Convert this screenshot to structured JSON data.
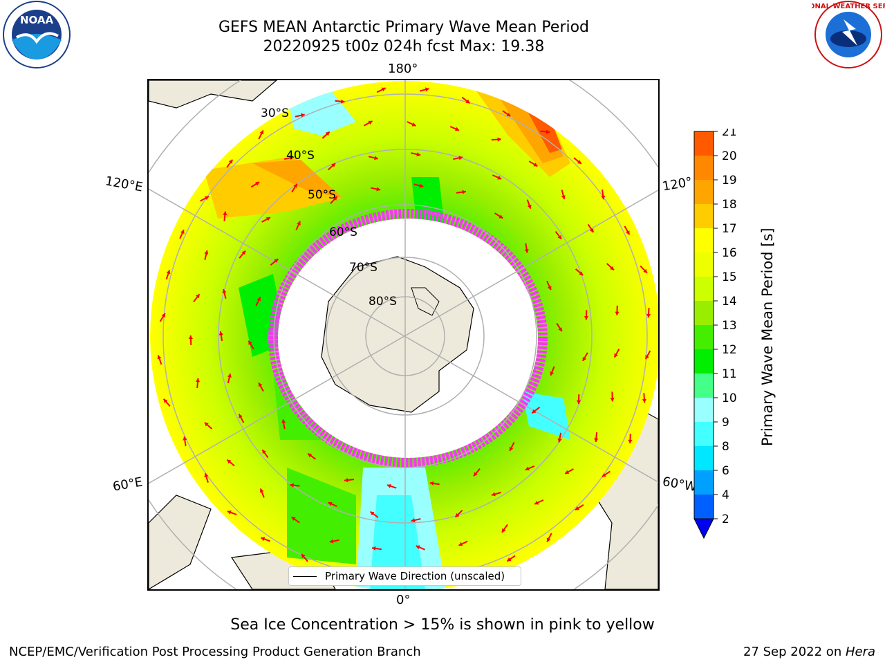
{
  "title": {
    "line1": "GEFS MEAN Antarctic Primary Wave Mean Period",
    "line2": "20220925 t00z 024h fcst   Max: 19.38"
  },
  "map": {
    "projection": "south-polar-stereographic",
    "longitude_labels": {
      "top": "180°",
      "upper_left": "120°E",
      "upper_right": "120°",
      "lower_left": "60°E",
      "lower_right": "60°W",
      "bottom": "0°"
    },
    "latitude_labels": [
      "30°S",
      "40°S",
      "50°S",
      "60°S",
      "70°S",
      "80°S"
    ],
    "land_color": "#eeeadb",
    "sea_ice_color": "#ff33ff",
    "arrow_color": "#ff0000",
    "grid_color": "#b0b0b0"
  },
  "colorbar": {
    "label": "Primary Wave Mean Period [s]",
    "ticks": [
      "2",
      "4",
      "6",
      "8",
      "9",
      "10",
      "11",
      "12",
      "13",
      "14",
      "15",
      "16",
      "17",
      "18",
      "19",
      "20",
      "21"
    ],
    "colors": [
      "#0060ff",
      "#00a0ff",
      "#00e8ff",
      "#44ffff",
      "#99ffff",
      "#44ff88",
      "#00ee00",
      "#44ee00",
      "#99ee00",
      "#ccff00",
      "#eeff00",
      "#ffff00",
      "#ffcc00",
      "#ffa500",
      "#ff8800",
      "#ff5a00",
      "#ff2a00",
      "#ff0000"
    ],
    "extend_color": "#0000ee"
  },
  "legend": {
    "label": "Primary Wave Direction (unscaled)"
  },
  "note": "Sea Ice Concentration > 15% is shown in pink to yellow",
  "footer": {
    "left": "NCEP/EMC/Verification Post Processing Product Generation Branch",
    "date": "27 Sep 2022 on ",
    "machine": "Hera"
  },
  "logos": {
    "noaa": "NOAA",
    "nws": "NATIONAL WEATHER SERVICE"
  }
}
